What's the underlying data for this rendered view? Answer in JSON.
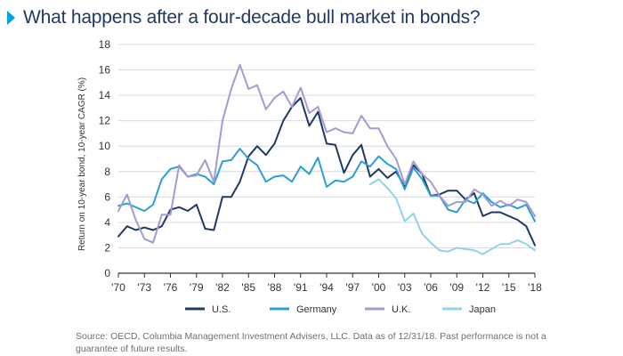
{
  "title": "What happens after a four-decade bull market in bonds?",
  "source": "Source: OECD, Columbia Management Investment Advisers, LLC. Data as of 12/31/18. Past performance is not a guarantee of future results.",
  "colors": {
    "title": "#1f3864",
    "accent": "#00a3e0",
    "axis": "#333333",
    "grid": "#d9d9d9"
  },
  "chart_data": {
    "type": "line",
    "title": "What happens after a four-decade bull market in bonds?",
    "xlabel": "",
    "ylabel": "Return on 10-year bond, 10-year CAGR (%)",
    "xlim": [
      1970,
      2018
    ],
    "ylim": [
      0,
      18
    ],
    "yticks": [
      0,
      2,
      4,
      6,
      8,
      10,
      12,
      14,
      16,
      18
    ],
    "xticks": [
      1970,
      1973,
      1976,
      1979,
      1982,
      1985,
      1988,
      1991,
      1994,
      1997,
      2000,
      2003,
      2006,
      2009,
      2012,
      2015,
      2018
    ],
    "xtick_labels": [
      "'70",
      "'73",
      "'76",
      "'79",
      "'82",
      "'85",
      "'88",
      "'91",
      "'94",
      "'97",
      "'00",
      "'03",
      "'06",
      "'09",
      "'12",
      "'15",
      "'18"
    ],
    "grid": "horizontal",
    "legend": "bottom",
    "series": [
      {
        "name": "U.S.",
        "color": "#1f3864",
        "x": [
          1970,
          1971,
          1972,
          1973,
          1974,
          1975,
          1976,
          1977,
          1978,
          1979,
          1980,
          1981,
          1982,
          1983,
          1984,
          1985,
          1986,
          1987,
          1988,
          1989,
          1990,
          1991,
          1992,
          1993,
          1994,
          1995,
          1996,
          1997,
          1998,
          1999,
          2000,
          2001,
          2002,
          2003,
          2004,
          2005,
          2006,
          2007,
          2008,
          2009,
          2010,
          2011,
          2012,
          2013,
          2014,
          2015,
          2016,
          2017,
          2018
        ],
        "values": [
          2.9,
          3.7,
          3.4,
          3.6,
          3.4,
          3.7,
          5.0,
          5.2,
          4.9,
          5.4,
          3.5,
          3.4,
          6.0,
          6.0,
          7.2,
          9.2,
          10.0,
          9.3,
          10.2,
          12.0,
          13.1,
          13.8,
          11.6,
          12.7,
          10.2,
          10.1,
          7.9,
          9.3,
          10.1,
          7.6,
          8.2,
          7.5,
          8.0,
          6.8,
          8.5,
          7.8,
          6.1,
          6.2,
          6.5,
          6.5,
          5.8,
          6.3,
          4.5,
          4.8,
          4.8,
          4.5,
          4.2,
          3.7,
          2.2
        ]
      },
      {
        "name": "Germany",
        "color": "#2a9fd6",
        "x": [
          1970,
          1971,
          1972,
          1973,
          1974,
          1975,
          1976,
          1977,
          1978,
          1979,
          1980,
          1981,
          1982,
          1983,
          1984,
          1985,
          1986,
          1987,
          1988,
          1989,
          1990,
          1991,
          1992,
          1993,
          1994,
          1995,
          1996,
          1997,
          1998,
          1999,
          2000,
          2001,
          2002,
          2003,
          2004,
          2005,
          2006,
          2007,
          2008,
          2009,
          2010,
          2011,
          2012,
          2013,
          2014,
          2015,
          2016,
          2017,
          2018
        ],
        "values": [
          5.3,
          5.5,
          5.2,
          4.9,
          5.4,
          7.4,
          8.2,
          8.4,
          7.6,
          7.8,
          7.6,
          7.0,
          8.8,
          8.9,
          9.8,
          9.0,
          8.5,
          7.2,
          7.6,
          7.7,
          7.2,
          8.4,
          7.8,
          9.1,
          6.8,
          7.3,
          7.2,
          7.6,
          8.8,
          8.4,
          9.2,
          8.6,
          8.2,
          6.6,
          8.3,
          7.4,
          6.1,
          6.1,
          5.0,
          4.8,
          5.8,
          5.5,
          6.3,
          5.6,
          5.2,
          5.4,
          5.1,
          5.4,
          4.1
        ]
      },
      {
        "name": "U.K.",
        "color": "#a59ad1",
        "x": [
          1970,
          1971,
          1972,
          1973,
          1974,
          1975,
          1976,
          1977,
          1978,
          1979,
          1980,
          1981,
          1982,
          1983,
          1984,
          1985,
          1986,
          1987,
          1988,
          1989,
          1990,
          1991,
          1992,
          1993,
          1994,
          1995,
          1996,
          1997,
          1998,
          1999,
          2000,
          2001,
          2002,
          2003,
          2004,
          2005,
          2006,
          2007,
          2008,
          2009,
          2010,
          2011,
          2012,
          2013,
          2014,
          2015,
          2016,
          2017,
          2018
        ],
        "values": [
          4.9,
          6.2,
          4.2,
          2.7,
          2.4,
          4.6,
          4.6,
          8.5,
          7.6,
          7.7,
          8.9,
          7.2,
          12.0,
          14.5,
          16.4,
          14.5,
          14.8,
          12.9,
          13.8,
          14.3,
          13.1,
          14.6,
          12.6,
          13.1,
          11.1,
          11.4,
          11.1,
          11.0,
          12.4,
          11.4,
          11.4,
          10.0,
          9.0,
          7.0,
          8.8,
          7.8,
          7.2,
          6.1,
          5.3,
          5.6,
          5.6,
          6.6,
          6.2,
          5.3,
          5.7,
          5.3,
          5.8,
          5.6,
          4.5
        ]
      },
      {
        "name": "Japan",
        "color": "#8fd3ec",
        "x": [
          1999,
          2000,
          2001,
          2002,
          2003,
          2004,
          2005,
          2006,
          2007,
          2008,
          2009,
          2010,
          2011,
          2012,
          2013,
          2014,
          2015,
          2016,
          2017,
          2018
        ],
        "values": [
          7.0,
          7.4,
          6.7,
          5.9,
          4.1,
          4.7,
          3.1,
          2.4,
          1.8,
          1.7,
          2.0,
          1.9,
          1.8,
          1.5,
          1.9,
          2.3,
          2.3,
          2.6,
          2.3,
          1.8
        ]
      }
    ]
  }
}
